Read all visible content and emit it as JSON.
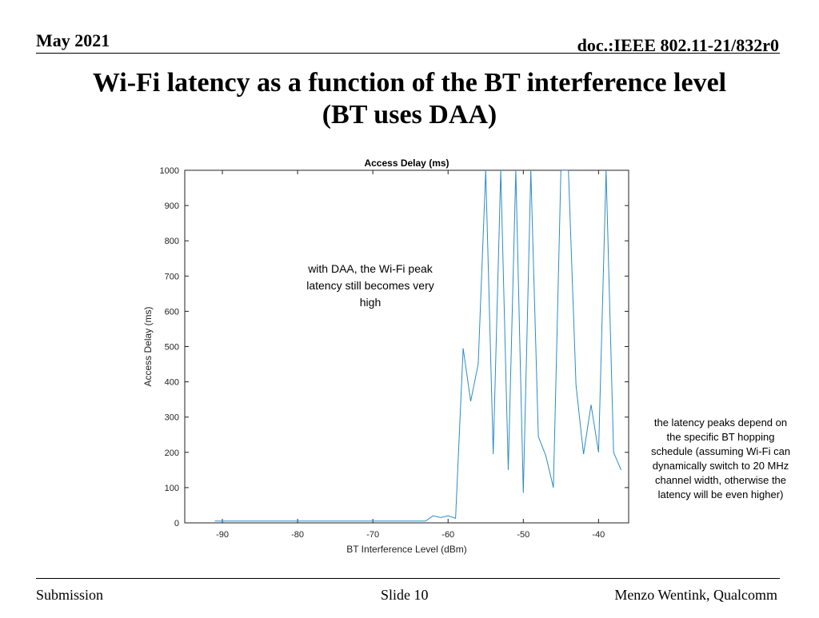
{
  "header": {
    "date": "May 2021",
    "doc": "doc.:IEEE 802.11-21/832r0"
  },
  "slide": {
    "title_line1": "Wi-Fi latency as a function of the BT interference level",
    "title_line2": "(BT uses DAA)"
  },
  "annotations": {
    "daa_note": "with DAA, the Wi-Fi peak latency still becomes very high",
    "peaks_note": "the latency peaks depend on the specific BT hopping schedule (assuming Wi-Fi can dynamically switch to 20 MHz channel width, otherwise the latency will be even higher)"
  },
  "footer": {
    "left": "Submission",
    "center": "Slide 10",
    "right": "Menzo Wentink, Qualcomm"
  },
  "chart_data": {
    "type": "line",
    "title": "Access Delay (ms)",
    "xlabel": "BT Interference Level (dBm)",
    "ylabel": "Access Delay (ms)",
    "xlim": [
      -95,
      -36
    ],
    "ylim": [
      0,
      1000
    ],
    "xticks": [
      -90,
      -80,
      -70,
      -60,
      -50,
      -40
    ],
    "yticks": [
      0,
      100,
      200,
      300,
      400,
      500,
      600,
      700,
      800,
      900,
      1000
    ],
    "line_color": "#2b8cc4",
    "grid": false,
    "series": [
      {
        "x": [
          -91,
          -90,
          -89,
          -88,
          -87,
          -86,
          -85,
          -84,
          -83,
          -82,
          -81,
          -80,
          -79,
          -78,
          -77,
          -76,
          -75,
          -74,
          -73,
          -72,
          -71,
          -70,
          -69,
          -68,
          -67,
          -66,
          -65,
          -64,
          -63,
          -62,
          -61,
          -60,
          -59,
          -58,
          -57,
          -56,
          -55,
          -54,
          -53,
          -52,
          -51,
          -50,
          -49,
          -48,
          -47,
          -46,
          -45,
          -44,
          -43,
          -42,
          -41,
          -40,
          -39,
          -38,
          -37
        ],
        "y": [
          5,
          5,
          5,
          5,
          5,
          5,
          5,
          5,
          5,
          5,
          5,
          5,
          5,
          5,
          5,
          5,
          5,
          5,
          5,
          5,
          5,
          5,
          5,
          5,
          5,
          5,
          5,
          5,
          5,
          20,
          15,
          20,
          13,
          495,
          345,
          450,
          1000,
          195,
          1000,
          150,
          1000,
          85,
          1000,
          245,
          190,
          100,
          1000,
          1000,
          390,
          195,
          335,
          200,
          1000,
          200,
          150
        ]
      }
    ]
  }
}
